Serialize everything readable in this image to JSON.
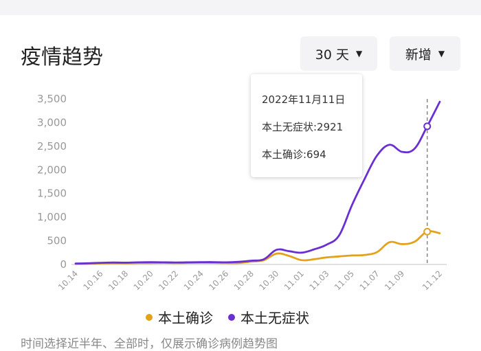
{
  "header": {
    "title": "疫情趋势"
  },
  "controls": {
    "days": {
      "label": "30 天",
      "icon": "caret-down-icon"
    },
    "mode": {
      "label": "新增",
      "icon": "caret-down-icon"
    }
  },
  "tooltip": {
    "date": "2022年11月11日",
    "asymptomatic": "本土无症状:2921",
    "confirmed": "本土确诊:694"
  },
  "legend": {
    "confirmed": "本土确诊",
    "asymptomatic": "本土无症状"
  },
  "footnote": "时间选择近半年、全部时，仅展示确诊病例趋势图",
  "colors": {
    "confirmed": "#e3a21a",
    "asymptomatic": "#6a2fd1",
    "axis": "#d6d6d6",
    "tick": "#999999"
  },
  "chart_data": {
    "type": "line",
    "x": [
      "10.14",
      "10.15",
      "10.16",
      "10.17",
      "10.18",
      "10.19",
      "10.20",
      "10.21",
      "10.22",
      "10.23",
      "10.24",
      "10.25",
      "10.26",
      "10.27",
      "10.28",
      "10.29",
      "10.30",
      "10.31",
      "11.01",
      "11.02",
      "11.03",
      "11.04",
      "11.05",
      "11.06",
      "11.07",
      "11.08",
      "11.09",
      "11.10",
      "11.11",
      "11.12"
    ],
    "x_tick_labels": [
      "10.14",
      "10.16",
      "10.18",
      "10.20",
      "10.22",
      "10.24",
      "10.26",
      "10.28",
      "10.30",
      "11.01",
      "11.03",
      "11.05",
      "11.07",
      "11.09",
      "11.12"
    ],
    "y_tick_labels": [
      "0",
      "500",
      "1,000",
      "1,500",
      "2,000",
      "2,500",
      "3,000",
      "3,500"
    ],
    "ylim": [
      0,
      3500
    ],
    "series": [
      {
        "name": "本土确诊",
        "values": [
          12,
          18,
          25,
          28,
          26,
          30,
          32,
          35,
          30,
          35,
          38,
          35,
          30,
          32,
          60,
          90,
          230,
          180,
          90,
          110,
          150,
          170,
          190,
          200,
          260,
          470,
          430,
          480,
          694,
          660
        ]
      },
      {
        "name": "本土无症状",
        "values": [
          20,
          25,
          35,
          40,
          38,
          45,
          48,
          45,
          42,
          45,
          48,
          50,
          45,
          55,
          80,
          110,
          310,
          280,
          250,
          320,
          420,
          620,
          1250,
          1800,
          2300,
          2530,
          2380,
          2450,
          2921,
          3440
        ]
      }
    ],
    "highlight_x": "11.11",
    "grid": false,
    "legend_position": "bottom"
  }
}
